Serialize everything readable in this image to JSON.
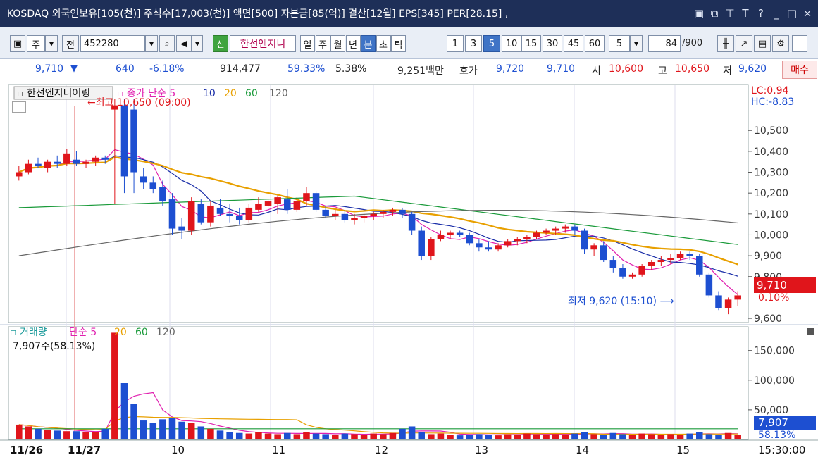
{
  "title": "KOSDAQ 외국인보유[105(천)] 주식수[17,003(천)] 액면[500] 자본금[85(억)] 결산[12월] EPS[345] PER[28.15] ,",
  "window_controls": {
    "min": "_",
    "max": "□",
    "close": "×",
    "help": "?",
    "font": "T",
    "pin": "⊤",
    "copy": "⧉",
    "restore": "▣"
  },
  "toolbar": {
    "mode": "주",
    "prefix": "전",
    "code": "452280",
    "new_badge": "신",
    "name": "한선엔지니",
    "periods": [
      "일",
      "주",
      "월",
      "년",
      "분",
      "초",
      "틱"
    ],
    "active_period": "분",
    "intervals": [
      "1",
      "3",
      "5",
      "10",
      "15",
      "30",
      "45",
      "60"
    ],
    "active_interval": "5",
    "select_interval": "5",
    "count_value": "84",
    "count_max": "/900"
  },
  "quote": {
    "price": "9,710",
    "change": "640",
    "change_pct": "-6.18%",
    "volume": "914,477",
    "vol_ratio": "59.33%",
    "turnover": "5.38%",
    "amount": "9,251백만",
    "ask_label": "호가",
    "ask": "9,720",
    "bid": "9,710",
    "open_label": "시",
    "open": "10,600",
    "high_label": "고",
    "high": "10,650",
    "low_label": "저",
    "low": "9,620",
    "buy_label": "매수"
  },
  "price_panel": {
    "name": "한선엔지니어링",
    "ma_label": "종가 단순 5",
    "ma_periods": [
      "10",
      "20",
      "60",
      "120"
    ],
    "ma_colors": {
      "5": "#e020b0",
      "10": "#1a2ea8",
      "20": "#e8a000",
      "60": "#1a9a3a",
      "120": "#666666"
    },
    "lc": "LC:0.94",
    "hc": "HC:-8.83",
    "high_annot": "최고 10,650 (09:00)",
    "low_annot": "최저 9,620 (15:10)",
    "last_price": "9,710",
    "last_pct": "0.10%",
    "y_ticks": [
      "10,500",
      "10,400",
      "10,300",
      "10,200",
      "10,100",
      "10,000",
      "9,900",
      "9,800",
      "9,600"
    ]
  },
  "volume_panel": {
    "label": "거래량",
    "ma_label": "단순 5",
    "ma_periods": [
      "20",
      "60",
      "120"
    ],
    "info": "7,907주(58.13%)",
    "last": "7,907",
    "last_pct": "58.13%",
    "y_ticks": [
      "150,000",
      "100,000",
      "50,000"
    ]
  },
  "x_axis": {
    "labels": [
      "11/26",
      "11/27",
      "10",
      "11",
      "12",
      "13",
      "14",
      "15"
    ],
    "time": "15:30:00"
  },
  "chart_data": {
    "type": "candlestick",
    "y_range_price": [
      9580,
      10720
    ],
    "candles": [
      [
        10280,
        10330,
        10260,
        10300
      ],
      [
        10300,
        10360,
        10290,
        10340
      ],
      [
        10340,
        10370,
        10320,
        10330
      ],
      [
        10320,
        10360,
        10300,
        10350
      ],
      [
        10350,
        10380,
        10320,
        10340
      ],
      [
        10340,
        10410,
        10330,
        10390
      ],
      [
        10360,
        10400,
        10330,
        10340
      ],
      [
        10340,
        10360,
        10320,
        10350
      ],
      [
        10350,
        10380,
        10330,
        10370
      ],
      [
        10370,
        10380,
        10340,
        10360
      ],
      [
        10600,
        10650,
        10150,
        10620
      ],
      [
        10620,
        10650,
        10200,
        10280
      ],
      [
        10600,
        10650,
        10200,
        10300
      ],
      [
        10280,
        10320,
        10220,
        10250
      ],
      [
        10250,
        10280,
        10200,
        10220
      ],
      [
        10230,
        10260,
        10140,
        10160
      ],
      [
        10170,
        10200,
        10000,
        10030
      ],
      [
        10040,
        10080,
        9980,
        10020
      ],
      [
        10020,
        10180,
        10000,
        10160
      ],
      [
        10150,
        10170,
        10050,
        10060
      ],
      [
        10060,
        10160,
        10040,
        10140
      ],
      [
        10130,
        10170,
        10090,
        10100
      ],
      [
        10100,
        10150,
        10060,
        10090
      ],
      [
        10090,
        10130,
        10050,
        10070
      ],
      [
        10070,
        10150,
        10060,
        10130
      ],
      [
        10120,
        10180,
        10110,
        10150
      ],
      [
        10140,
        10170,
        10130,
        10160
      ],
      [
        10150,
        10190,
        10100,
        10180
      ],
      [
        10170,
        10220,
        10100,
        10120
      ],
      [
        10120,
        10180,
        10110,
        10160
      ],
      [
        10160,
        10230,
        10140,
        10200
      ],
      [
        10200,
        10210,
        10110,
        10120
      ],
      [
        10120,
        10140,
        10080,
        10090
      ],
      [
        10090,
        10120,
        10070,
        10100
      ],
      [
        10100,
        10120,
        10060,
        10070
      ],
      [
        10070,
        10100,
        10050,
        10080
      ],
      [
        10080,
        10100,
        10060,
        10090
      ],
      [
        10090,
        10110,
        10070,
        10100
      ],
      [
        10100,
        10120,
        10080,
        10110
      ],
      [
        10110,
        10130,
        10090,
        10120
      ],
      [
        10120,
        10130,
        10080,
        10100
      ],
      [
        10100,
        10110,
        10000,
        10020
      ],
      [
        10020,
        10040,
        9880,
        9900
      ],
      [
        9900,
        9990,
        9880,
        9980
      ],
      [
        9980,
        10020,
        9970,
        10000
      ],
      [
        10000,
        10020,
        9980,
        10010
      ],
      [
        10010,
        10020,
        9990,
        10000
      ],
      [
        10000,
        10010,
        9950,
        9960
      ],
      [
        9960,
        9980,
        9920,
        9940
      ],
      [
        9940,
        9970,
        9920,
        9930
      ],
      [
        9930,
        9960,
        9920,
        9950
      ],
      [
        9950,
        9980,
        9940,
        9970
      ],
      [
        9970,
        9990,
        9950,
        9980
      ],
      [
        9980,
        10000,
        9960,
        9990
      ],
      [
        9990,
        10020,
        9980,
        10010
      ],
      [
        10010,
        10030,
        10000,
        10020
      ],
      [
        10020,
        10040,
        10000,
        10030
      ],
      [
        10030,
        10050,
        10010,
        10040
      ],
      [
        10040,
        10050,
        10000,
        10020
      ],
      [
        10020,
        10030,
        9910,
        9930
      ],
      [
        9930,
        9960,
        9900,
        9950
      ],
      [
        9950,
        9970,
        9870,
        9880
      ],
      [
        9880,
        9900,
        9820,
        9840
      ],
      [
        9840,
        9860,
        9790,
        9800
      ],
      [
        9800,
        9820,
        9790,
        9810
      ],
      [
        9810,
        9860,
        9800,
        9850
      ],
      [
        9850,
        9880,
        9830,
        9870
      ],
      [
        9870,
        9900,
        9850,
        9880
      ],
      [
        9880,
        9910,
        9860,
        9890
      ],
      [
        9890,
        9920,
        9880,
        9910
      ],
      [
        9910,
        9920,
        9880,
        9900
      ],
      [
        9900,
        9910,
        9800,
        9810
      ],
      [
        9810,
        9820,
        9700,
        9710
      ],
      [
        9710,
        9730,
        9640,
        9650
      ],
      [
        9650,
        9700,
        9620,
        9690
      ],
      [
        9690,
        9730,
        9660,
        9710
      ]
    ],
    "volumes": [
      25,
      22,
      18,
      16,
      15,
      14,
      14,
      12,
      12,
      18,
      180,
      95,
      60,
      32,
      28,
      34,
      36,
      30,
      28,
      22,
      18,
      15,
      12,
      11,
      10,
      12,
      10,
      9,
      11,
      9,
      12,
      10,
      9,
      8,
      10,
      9,
      8,
      10,
      9,
      11,
      18,
      22,
      12,
      9,
      10,
      8,
      7,
      8,
      9,
      8,
      7,
      9,
      8,
      10,
      9,
      8,
      9,
      8,
      10,
      12,
      9,
      8,
      11,
      9,
      8,
      10,
      9,
      8,
      9,
      8,
      10,
      12,
      9,
      8,
      11,
      8
    ],
    "volume_range": [
      0,
      190000
    ]
  }
}
